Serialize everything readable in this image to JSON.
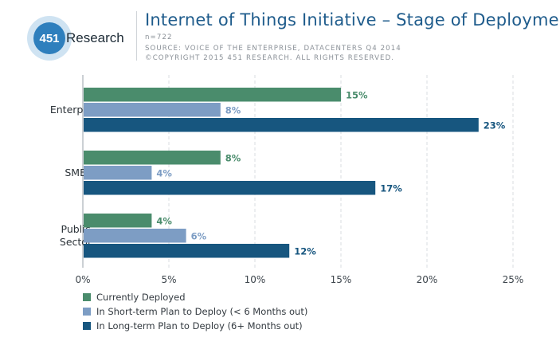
{
  "brand": {
    "logo_number": "451",
    "logo_word": "Research"
  },
  "header": {
    "title": "Internet of Things Initiative – Stage of Deployment",
    "sample": "n=722",
    "source": "SOURCE: VOICE OF THE ENTERPRISE, DATACENTERS Q4 2014",
    "copyright_bold": "©COPYRIGHT 2015 451 RESEARCH.",
    "copyright_rest": " ALL RIGHTS RESERVED."
  },
  "colors": {
    "currently_deployed": "#4a8c6c",
    "short_term": "#7d9dc4",
    "long_term": "#17567f",
    "logo_circle": "#2e7fbd"
  },
  "chart_data": {
    "type": "bar",
    "orientation": "horizontal",
    "categories": [
      {
        "label_lines": [
          "Enterprise"
        ]
      },
      {
        "label_lines": [
          "SMB"
        ]
      },
      {
        "label_lines": [
          "Public",
          "Sector"
        ]
      }
    ],
    "series": [
      {
        "name": "Currently Deployed",
        "values": [
          15,
          8,
          4
        ],
        "labels": [
          "15%",
          "8%",
          "4%"
        ]
      },
      {
        "name": "In Short-term Plan to Deploy (< 6 Months out)",
        "values": [
          8,
          4,
          6
        ],
        "labels": [
          "8%",
          "4%",
          "6%"
        ]
      },
      {
        "name": "In Long-term Plan to Deploy (6+ Months out)",
        "values": [
          23,
          17,
          12
        ],
        "labels": [
          "23%",
          "17%",
          "12%"
        ]
      }
    ],
    "xlim": [
      0,
      25
    ],
    "xticks": [
      0,
      5,
      10,
      15,
      20,
      25
    ],
    "xtick_labels": [
      "0%",
      "5%",
      "10%",
      "15%",
      "20%",
      "25%"
    ],
    "grid": "vertical dashed",
    "legend_position": "bottom-left"
  }
}
